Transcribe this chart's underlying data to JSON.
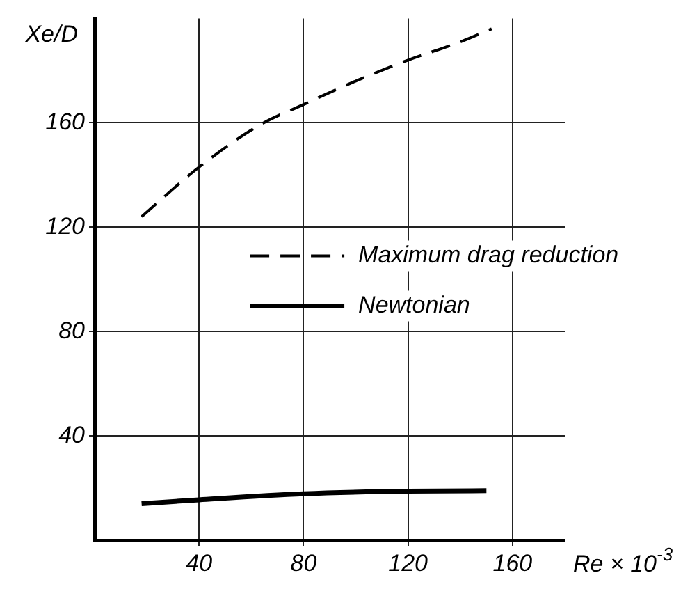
{
  "chart_data": {
    "type": "line",
    "xlabel": "Re × 10$^{-3}$",
    "ylabel": "Xe/D",
    "xlim": [
      0,
      180
    ],
    "xticks": [
      40,
      80,
      120,
      160
    ],
    "ylim": [
      0,
      200
    ],
    "yticks": [
      40,
      80,
      120,
      160
    ],
    "grid": true,
    "legend": "right",
    "series": [
      {
        "name": "Maximum drag reduction",
        "color": "#000000",
        "line_style": "dashed",
        "x": [
          18,
          40,
          63,
          80,
          100,
          120,
          140,
          152
        ],
        "values": [
          124,
          143,
          159,
          167,
          176,
          184,
          191,
          196
        ]
      },
      {
        "name": "Newtonian",
        "color": "#000000",
        "line_style": "solid",
        "x": [
          18,
          40,
          80,
          120,
          150
        ],
        "values": [
          14,
          15.5,
          17.8,
          18.8,
          19
        ]
      }
    ]
  }
}
